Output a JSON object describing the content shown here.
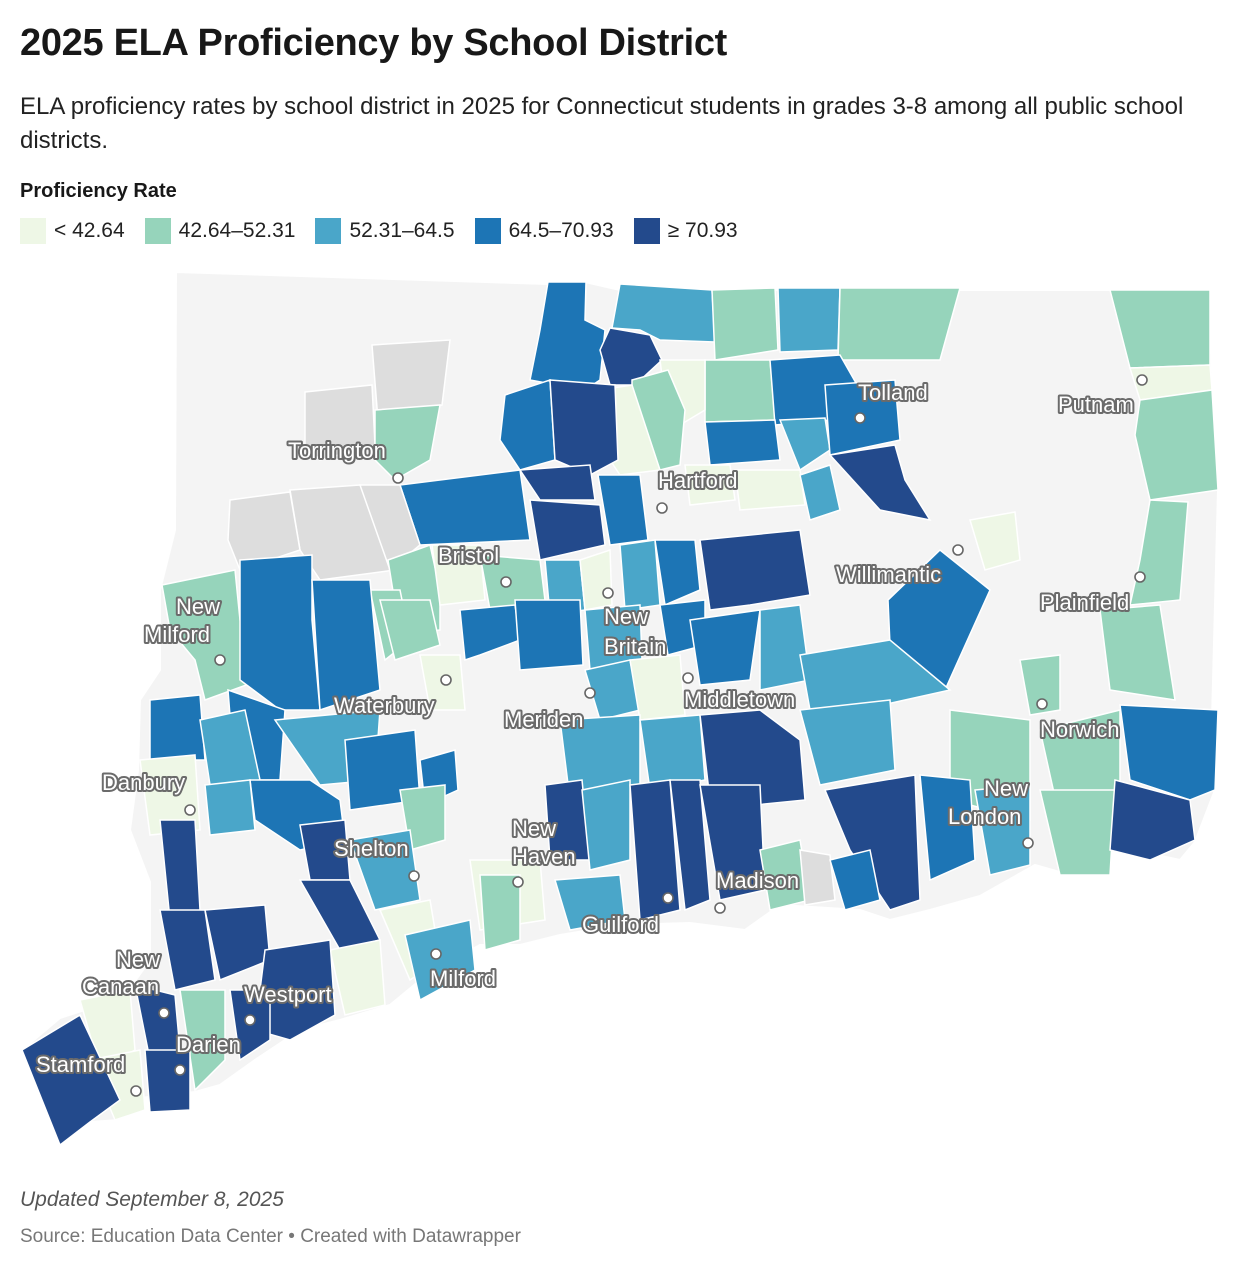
{
  "title": "2025 ELA Proficiency by School District",
  "subtitle": "ELA proficiency rates by school district in 2025 for Connecticut students in grades 3-8 among all public school districts.",
  "legend": {
    "title": "Proficiency Rate",
    "items": [
      {
        "label": "< 42.64",
        "color": "#eef7e6"
      },
      {
        "label": "42.64–52.31",
        "color": "#96d4bb"
      },
      {
        "label": "52.31–64.5",
        "color": "#4aa6c9"
      },
      {
        "label": "64.5–70.93",
        "color": "#1d75b5"
      },
      {
        "label": "≥ 70.93",
        "color": "#234a8c"
      }
    ]
  },
  "colors": {
    "no_data": "#dddddd",
    "background_land": "#f4f4f4",
    "border": "#ffffff"
  },
  "cities": [
    {
      "name": "Torrington",
      "dot": "open"
    },
    {
      "name": "Hartford",
      "dot": "open"
    },
    {
      "name": "Tolland",
      "dot": "filled"
    },
    {
      "name": "Putnam",
      "dot": "open"
    },
    {
      "name": "Bristol",
      "dot": "open"
    },
    {
      "name": "Willimantic",
      "dot": "open"
    },
    {
      "name": "New Milford",
      "dot": "open"
    },
    {
      "name": "New Britain",
      "dot": "open"
    },
    {
      "name": "Plainfield",
      "dot": "open"
    },
    {
      "name": "Waterbury",
      "dot": "open"
    },
    {
      "name": "Meriden",
      "dot": "open"
    },
    {
      "name": "Middletown",
      "dot": "open"
    },
    {
      "name": "Norwich",
      "dot": "open"
    },
    {
      "name": "Danbury",
      "dot": "open"
    },
    {
      "name": "New London",
      "dot": "open"
    },
    {
      "name": "New Haven",
      "dot": "open"
    },
    {
      "name": "Shelton",
      "dot": "open"
    },
    {
      "name": "Madison",
      "dot": "filled"
    },
    {
      "name": "Guilford",
      "dot": "filled"
    },
    {
      "name": "Milford",
      "dot": "open"
    },
    {
      "name": "New Canaan",
      "dot": "filled"
    },
    {
      "name": "Westport",
      "dot": "filled"
    },
    {
      "name": "Darien",
      "dot": "filled"
    },
    {
      "name": "Stamford",
      "dot": "open"
    }
  ],
  "footer": {
    "updated": "Updated September 8, 2025",
    "source": "Source: Education Data Center • Created with Datawrapper"
  }
}
